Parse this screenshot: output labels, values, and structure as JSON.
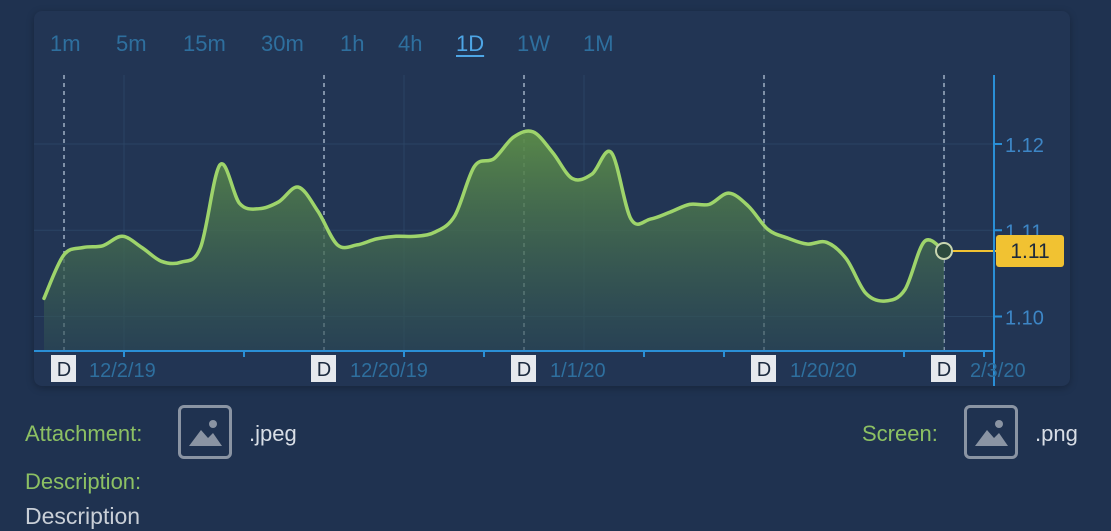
{
  "timeframes": {
    "items": [
      "1m",
      "5m",
      "15m",
      "30m",
      "1h",
      "4h",
      "1D",
      "1W",
      "1M"
    ],
    "active": "1D"
  },
  "chart_data": {
    "type": "area",
    "ylim": [
      1.096,
      1.128
    ],
    "yticks": [
      1.1,
      1.11,
      1.12
    ],
    "ytick_labels": [
      "1.10",
      "1.11",
      "1.12"
    ],
    "grid": true,
    "x_date_labels": [
      "12/2/19",
      "12/20/19",
      "1/1/20",
      "1/20/20",
      "2/3/20"
    ],
    "day_markers": [
      "D",
      "D",
      "D",
      "D",
      "D"
    ],
    "current_value_label": "1.11",
    "line_color": "#9ed46b",
    "fill_color": "#5a8a48",
    "series": [
      {
        "values": [
          1.1021,
          1.1071,
          1.108,
          1.1082,
          1.1093,
          1.108,
          1.1064,
          1.1063,
          1.108,
          1.1176,
          1.1131,
          1.1125,
          1.1133,
          1.115,
          1.1122,
          1.1083,
          1.1083,
          1.109,
          1.1093,
          1.1093,
          1.1098,
          1.1117,
          1.1174,
          1.1183,
          1.1208,
          1.1214,
          1.119,
          1.116,
          1.1165,
          1.119,
          1.1113,
          1.1113,
          1.1121,
          1.113,
          1.113,
          1.1143,
          1.1128,
          1.1101,
          1.1091,
          1.1084,
          1.1086,
          1.1067,
          1.1027,
          1.1018,
          1.1031,
          1.1087,
          1.1076
        ]
      }
    ]
  },
  "attachment": {
    "label": "Attachment:",
    "ext": ".jpeg",
    "icon": "image-placeholder-icon"
  },
  "screen": {
    "label": "Screen:",
    "ext": ".png",
    "icon": "image-placeholder-icon"
  },
  "description": {
    "label": "Description:",
    "value": "Description"
  },
  "colors": {
    "background": "#1f3250",
    "card": "#223554",
    "accent_blue": "#2a8fd6",
    "label_green": "#8cc063",
    "price_badge": "#f1c232"
  }
}
